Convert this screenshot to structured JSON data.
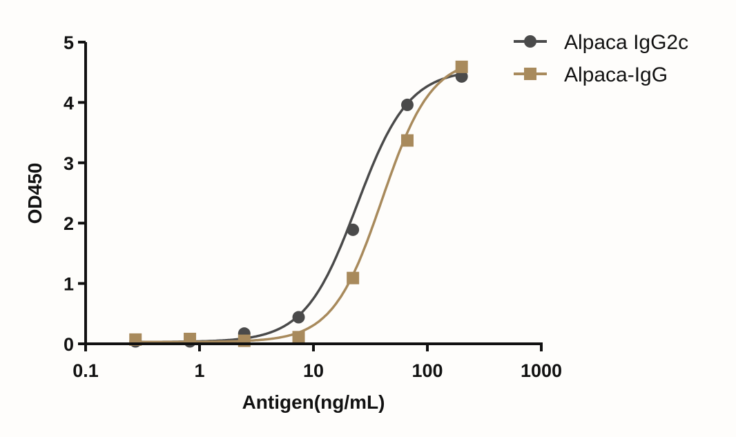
{
  "chart_data": {
    "type": "scatter",
    "title": "",
    "xlabel": "Antigen(ng/mL)",
    "ylabel": "OD450",
    "xscale": "log",
    "xlim": [
      0.1,
      1000
    ],
    "ylim": [
      0,
      5
    ],
    "x_ticks": [
      "0.1",
      "1",
      "10",
      "100",
      "1000"
    ],
    "y_ticks": [
      "0",
      "1",
      "2",
      "3",
      "4",
      "5"
    ],
    "grid": false,
    "legend_position": "top-right",
    "x": [
      0.274,
      0.823,
      2.47,
      7.41,
      22.2,
      66.7,
      200
    ],
    "series": [
      {
        "name": "Alpaca IgG2c",
        "marker": "circle",
        "color": "#4a4a4a",
        "values": [
          0.04,
          0.04,
          0.17,
          0.44,
          1.89,
          3.96,
          4.43
        ],
        "fit": {
          "type": "4PL",
          "bottom": 0.03,
          "top": 4.55,
          "ec50": 24,
          "hill": 1.9
        }
      },
      {
        "name": "Alpaca-IgG",
        "marker": "square",
        "color": "#a88a5c",
        "values": [
          0.07,
          0.08,
          0.05,
          0.11,
          1.09,
          3.37,
          4.59
        ],
        "fit": {
          "type": "4PL",
          "bottom": 0.03,
          "top": 4.75,
          "ec50": 40,
          "hill": 2.0
        }
      }
    ]
  }
}
